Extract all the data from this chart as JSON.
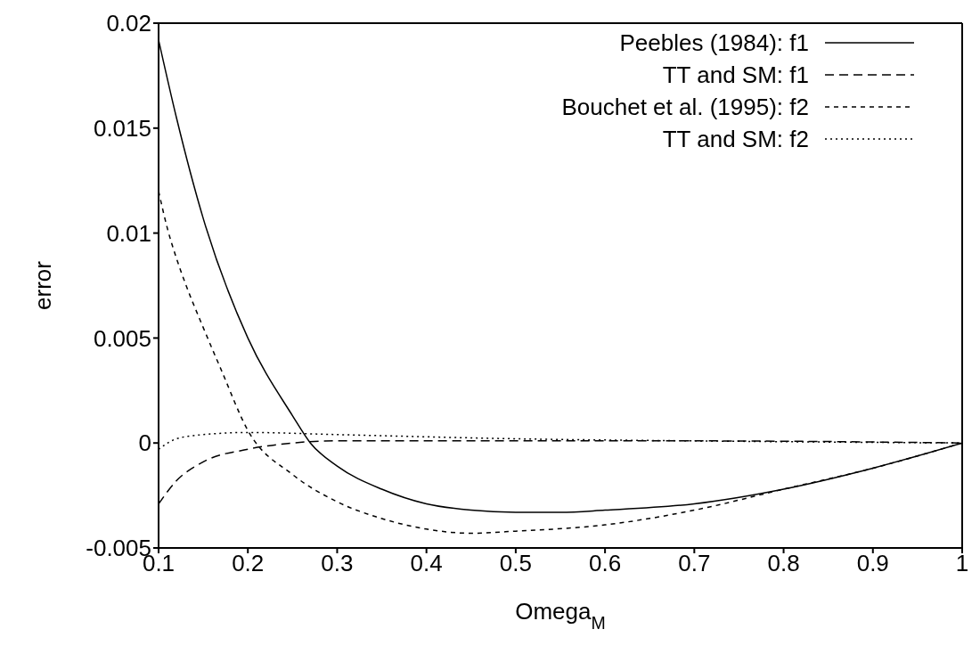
{
  "chart_data": {
    "type": "line",
    "xlabel": "Omega$_{M}$",
    "ylabel": "error",
    "xlim": [
      0.1,
      1
    ],
    "xticks": [
      0.1,
      0.2,
      0.3,
      0.4,
      0.5,
      0.6,
      0.7,
      0.8,
      0.9,
      1
    ],
    "ylim": [
      -0.005,
      0.02
    ],
    "yticks": [
      -0.005,
      0,
      0.005,
      0.01,
      0.015,
      0.02
    ],
    "legend": "top right",
    "grid": false,
    "marker": "none",
    "series": [
      {
        "name": "Peebles (1984): f1",
        "color": "#000000",
        "line_style": "solid",
        "x": [
          0.1,
          0.12,
          0.15,
          0.2,
          0.25,
          0.27,
          0.3,
          0.35,
          0.4,
          0.45,
          0.5,
          0.55,
          0.6,
          0.7,
          0.8,
          0.9,
          1.0
        ],
        "values": [
          0.0192,
          0.0155,
          0.0107,
          0.005,
          0.0013,
          0.0,
          -0.0011,
          -0.0022,
          -0.0029,
          -0.0032,
          -0.0033,
          -0.0033,
          -0.0032,
          -0.0029,
          -0.0022,
          -0.0012,
          0
        ]
      },
      {
        "name": "TT and SM: f1",
        "color": "#000000",
        "line_style": "dashed",
        "x": [
          0.1,
          0.12,
          0.15,
          0.2,
          0.25,
          0.3,
          0.5,
          0.7,
          1.0
        ],
        "values": [
          -0.0029,
          -0.0018,
          -0.0009,
          -0.0003,
          0.0,
          0.0001,
          0.0001,
          0.0001,
          0
        ]
      },
      {
        "name": "Bouchet et al. (1995): f2",
        "color": "#000000",
        "line_style": "dashed",
        "x": [
          0.1,
          0.11,
          0.12,
          0.13,
          0.15,
          0.17,
          0.2,
          0.25,
          0.3,
          0.35,
          0.4,
          0.45,
          0.5,
          0.6,
          0.7,
          0.8,
          0.9,
          1.0
        ],
        "values": [
          0.012,
          0.0102,
          0.0088,
          0.0076,
          0.0055,
          0.0035,
          0.0006,
          -0.0015,
          -0.0028,
          -0.0036,
          -0.0041,
          -0.0043,
          -0.0042,
          -0.0039,
          -0.0032,
          -0.0022,
          -0.0012,
          0
        ]
      },
      {
        "name": "TT and SM: f2",
        "color": "#000000",
        "line_style": "dotted",
        "x": [
          0.1,
          0.12,
          0.15,
          0.2,
          0.3,
          0.5,
          0.7,
          1.0
        ],
        "values": [
          -0.0003,
          0.0002,
          0.0004,
          0.0005,
          0.0004,
          0.0002,
          0.0001,
          0
        ]
      }
    ]
  }
}
